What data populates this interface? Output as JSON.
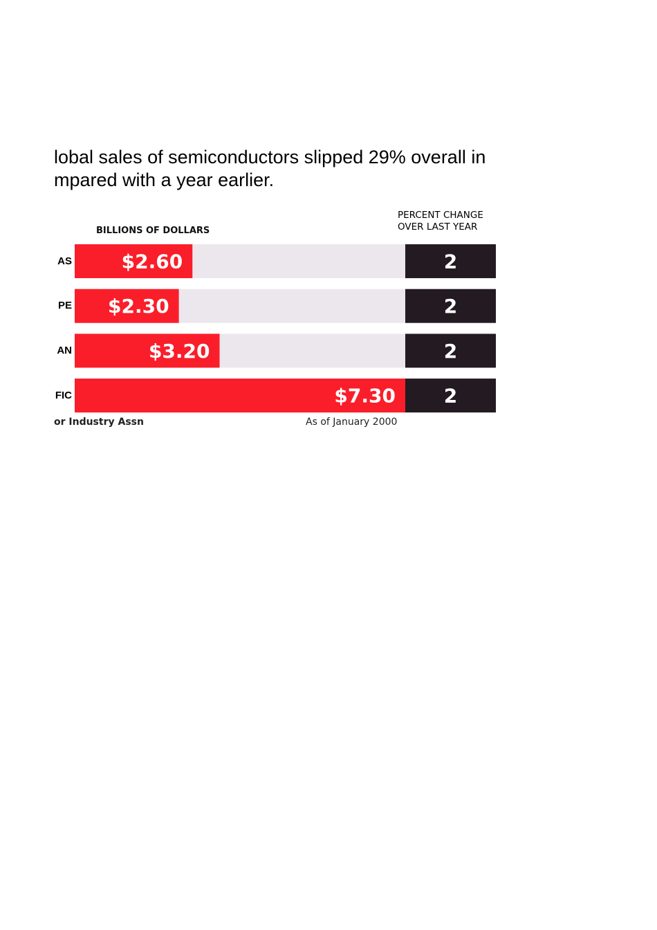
{
  "chart_data": {
    "type": "bar",
    "subtitle_lines": [
      "lobal sales of semiconductors slipped 29% overall in",
      "mpared with a year earlier."
    ],
    "value_header": "BILLIONS OF DOLLARS",
    "change_header_lines": [
      "PERCENT CHANGE",
      "OVER LAST YEAR"
    ],
    "categories": [
      "AS",
      "PE",
      "AN",
      "FIC"
    ],
    "values": [
      2.6,
      2.3,
      3.2,
      7.3
    ],
    "value_labels": [
      "$2.60",
      "$2.30",
      "$3.20",
      "$7.30"
    ],
    "percent_change": [
      "2",
      "2",
      "2",
      "2"
    ],
    "xlim": [
      0,
      7.3
    ],
    "source": "or Industry Assn",
    "date_note": "As of January 2000",
    "colors": {
      "bar": "#fa1e2a",
      "track": "#ece7ed",
      "change_box": "#231b21",
      "value_text": "#ffffff"
    }
  }
}
